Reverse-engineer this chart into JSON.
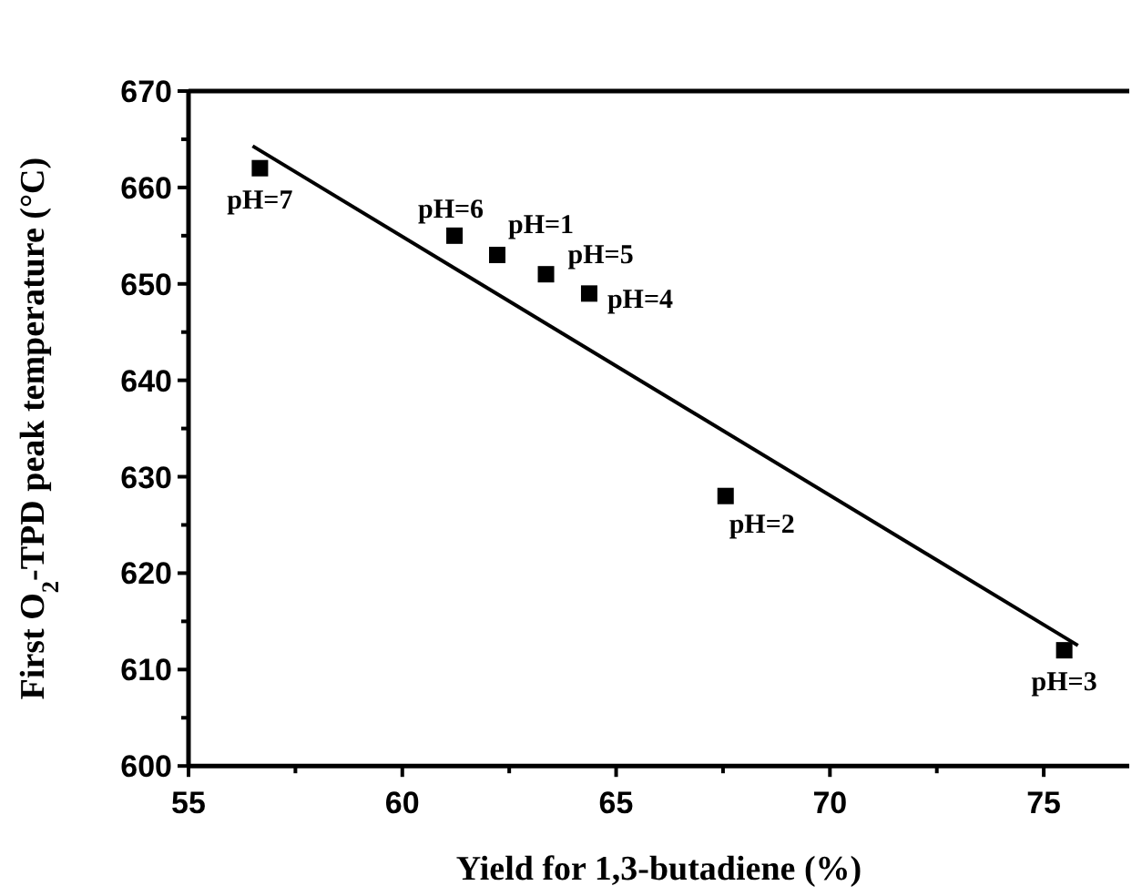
{
  "chart_data": {
    "type": "scatter",
    "xlabel": "Yield for 1,3-butadiene (%)",
    "ylabel": "First O$_{2}$-TPD peak temperature (°C)",
    "xlim": [
      55,
      77
    ],
    "xticks": [
      55,
      60,
      65,
      70,
      75
    ],
    "ylim": [
      600,
      670
    ],
    "yticks": [
      600,
      610,
      620,
      630,
      640,
      650,
      660,
      670
    ],
    "grid": false,
    "series": [
      {
        "marker": "square",
        "color": "#000000",
        "x": [
          56.67,
          61.22,
          62.22,
          63.36,
          64.37,
          67.56,
          75.48
        ],
        "values": [
          662,
          655,
          653,
          651,
          649,
          628,
          612
        ]
      },
      {
        "type": "line",
        "color": "#000000",
        "x": [
          56.5,
          75.8
        ],
        "values": [
          664.3,
          612.5
        ]
      }
    ],
    "annotations": [
      {
        "text": "pH=7",
        "x": 56.67,
        "y": 662
      },
      {
        "text": "pH=6",
        "x": 61.22,
        "y": 655
      },
      {
        "text": "pH=1",
        "x": 62.22,
        "y": 653
      },
      {
        "text": "pH=5",
        "x": 63.36,
        "y": 651
      },
      {
        "text": "pH=4",
        "x": 64.37,
        "y": 649
      },
      {
        "text": "pH=2",
        "x": 67.56,
        "y": 628
      },
      {
        "text": "pH=3",
        "x": 75.48,
        "y": 612
      }
    ]
  }
}
